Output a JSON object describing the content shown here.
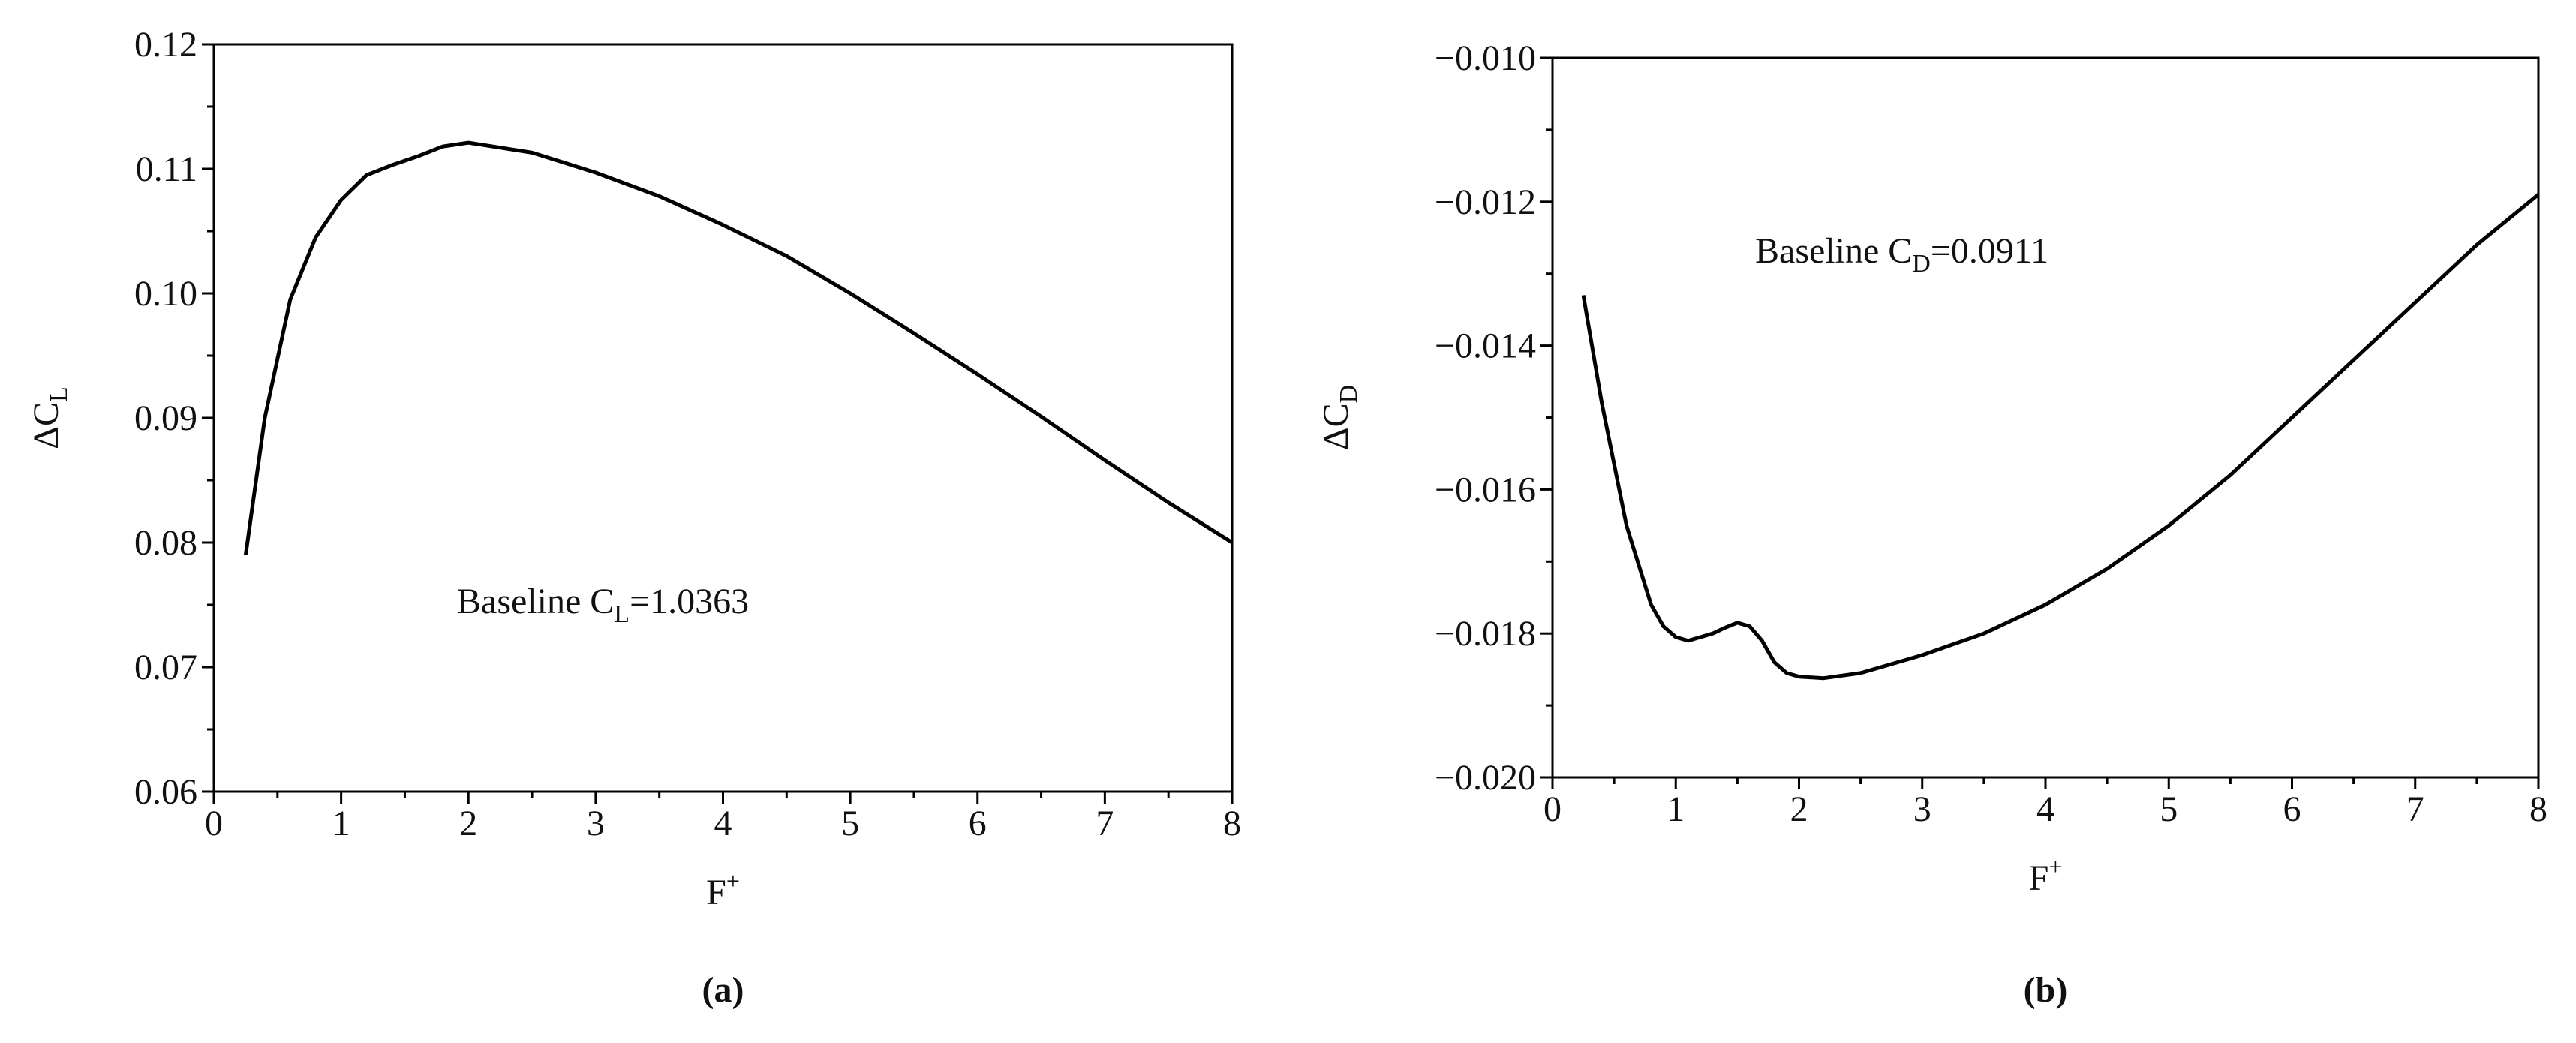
{
  "chart_data": [
    {
      "type": "line",
      "caption": "(a)",
      "xlabel": {
        "main": "F",
        "sup": "+"
      },
      "ylabel": {
        "main": "ΔC",
        "sub": "L"
      },
      "annotation": {
        "text": "Baseline C",
        "sub": "L",
        "after": "=1.0363"
      },
      "xlim": [
        0,
        8
      ],
      "xticks": [
        0,
        1,
        2,
        3,
        4,
        5,
        6,
        7,
        8
      ],
      "ylim": [
        0.06,
        0.12
      ],
      "yticks": [
        0.06,
        0.07,
        0.08,
        0.09,
        {
          "value": 0.1,
          "label": "0.10"
        },
        0.11,
        0.12
      ],
      "color": "#000000",
      "x": [
        0.25,
        0.4,
        0.6,
        0.8,
        1.0,
        1.2,
        1.4,
        1.6,
        1.8,
        2.0,
        2.5,
        3,
        3.5,
        4,
        4.5,
        5,
        5.5,
        6,
        6.5,
        7,
        7.5,
        8
      ],
      "values": [
        0.079,
        0.09,
        0.0995,
        0.1045,
        0.1075,
        0.1095,
        0.1103,
        0.111,
        0.1118,
        0.1121,
        0.1113,
        0.1097,
        0.1078,
        0.1055,
        0.103,
        0.1,
        0.0968,
        0.0935,
        0.0901,
        0.0866,
        0.0832,
        0.08
      ]
    },
    {
      "type": "line",
      "caption": "(b)",
      "xlabel": {
        "main": "F",
        "sup": "+"
      },
      "ylabel": {
        "main": "ΔC",
        "sub": "D"
      },
      "annotation": {
        "text": "Baseline C",
        "sub": "D",
        "after": "=0.0911"
      },
      "xlim": [
        0,
        8
      ],
      "xticks": [
        0,
        1,
        2,
        3,
        4,
        5,
        6,
        7,
        8
      ],
      "ylim": [
        -0.02,
        -0.01
      ],
      "yticks": [
        {
          "value": -0.02,
          "label": "−0.020"
        },
        {
          "value": -0.018,
          "label": "−0.018"
        },
        {
          "value": -0.016,
          "label": "−0.016"
        },
        {
          "value": -0.014,
          "label": "−0.014"
        },
        {
          "value": -0.012,
          "label": "−0.012"
        },
        {
          "value": -0.01,
          "label": "−0.010"
        }
      ],
      "color": "#000000",
      "x": [
        0.25,
        0.4,
        0.6,
        0.8,
        0.9,
        1.0,
        1.1,
        1.2,
        1.3,
        1.4,
        1.5,
        1.6,
        1.7,
        1.8,
        1.9,
        2.0,
        2.2,
        2.5,
        3,
        3.5,
        4,
        4.5,
        5,
        5.5,
        6,
        6.5,
        7,
        7.5,
        8
      ],
      "values": [
        -0.0133,
        -0.0148,
        -0.0165,
        -0.0176,
        -0.0179,
        -0.01805,
        -0.0181,
        -0.01805,
        -0.018,
        -0.01792,
        -0.01785,
        -0.0179,
        -0.0181,
        -0.0184,
        -0.01855,
        -0.0186,
        -0.01862,
        -0.01855,
        -0.0183,
        -0.018,
        -0.0176,
        -0.0171,
        -0.0165,
        -0.0158,
        -0.015,
        -0.0142,
        -0.0134,
        -0.0126,
        -0.0119
      ]
    }
  ]
}
